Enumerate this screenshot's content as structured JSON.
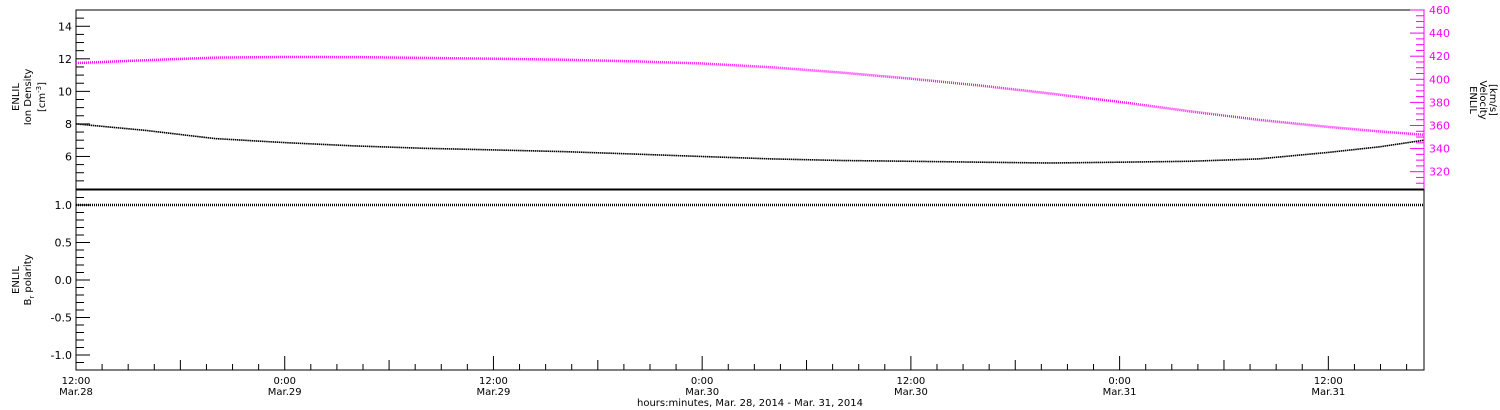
{
  "chart_data": [
    {
      "type": "line",
      "panel": "top",
      "xlabel": "hours:minutes, Mar. 28, 2014 - Mar. 31, 2014",
      "x_ticks": [
        {
          "time": "12:00",
          "date": "Mar.28",
          "hours": 0
        },
        {
          "time": "0:00",
          "date": "Mar.29",
          "hours": 12
        },
        {
          "time": "12:00",
          "date": "Mar.29",
          "hours": 24
        },
        {
          "time": "0:00",
          "date": "Mar.30",
          "hours": 36
        },
        {
          "time": "12:00",
          "date": "Mar.30",
          "hours": 48
        },
        {
          "time": "0:00",
          "date": "Mar.31",
          "hours": 60
        },
        {
          "time": "12:00",
          "date": "Mar.31",
          "hours": 72
        }
      ],
      "xlim": [
        0,
        77.5
      ],
      "left_axis": {
        "label_line1": "ENLIL",
        "label_line2": "Ion Density",
        "label_line3": "[cm",
        "label_exp": "-3",
        "label_close": "]",
        "ylim": [
          4,
          15
        ],
        "ticks": [
          "6",
          "8",
          "10",
          "12",
          "14"
        ],
        "tick_values": [
          6,
          8,
          10,
          12,
          14
        ],
        "color": "#000000"
      },
      "right_axis": {
        "label_line1": "ENLIL",
        "label_line2": "Velocity",
        "label_line3": "[km/s]",
        "ylim": [
          305,
          460
        ],
        "ticks": [
          "320",
          "340",
          "360",
          "380",
          "400",
          "420",
          "440",
          "460"
        ],
        "tick_values": [
          320,
          340,
          360,
          380,
          400,
          420,
          440,
          460
        ],
        "color": "#ff00ff"
      },
      "series": [
        {
          "axis": "left",
          "color": "#000000",
          "x": [
            0,
            4,
            8,
            12,
            16,
            20,
            24,
            28,
            32,
            36,
            40,
            44,
            48,
            52,
            56,
            60,
            64,
            68,
            72,
            75,
            77.5
          ],
          "y": [
            8.0,
            7.6,
            7.1,
            6.85,
            6.65,
            6.5,
            6.4,
            6.3,
            6.15,
            6.0,
            5.85,
            5.75,
            5.7,
            5.65,
            5.6,
            5.65,
            5.7,
            5.85,
            6.25,
            6.6,
            7.0
          ]
        },
        {
          "axis": "right",
          "color": "#ff00ff",
          "x": [
            0,
            4,
            8,
            12,
            16,
            20,
            24,
            28,
            32,
            36,
            40,
            44,
            48,
            52,
            56,
            60,
            64,
            68,
            72,
            75,
            77.5
          ],
          "y": [
            414,
            416.5,
            418.8,
            419.3,
            419.2,
            418.5,
            417.8,
            417,
            415.6,
            413.7,
            410.4,
            405.8,
            400.5,
            394.5,
            387.7,
            380.4,
            372.4,
            364.8,
            358.8,
            354.8,
            352
          ]
        }
      ]
    },
    {
      "type": "line",
      "panel": "bottom",
      "left_axis": {
        "label_line1": "ENLIL",
        "label_line2": "B",
        "label_sub": "r",
        "label_line2b": " polarity",
        "ylim": [
          -1.2,
          1.2
        ],
        "ticks": [
          "1.0",
          "0.5",
          "0.0",
          "-0.5",
          "-1.0"
        ],
        "tick_values": [
          1.0,
          0.5,
          0.0,
          -0.5,
          -1.0
        ]
      },
      "series": [
        {
          "color": "#000000",
          "x": [
            0,
            77.5
          ],
          "y": [
            1.0,
            1.0
          ]
        }
      ]
    }
  ]
}
